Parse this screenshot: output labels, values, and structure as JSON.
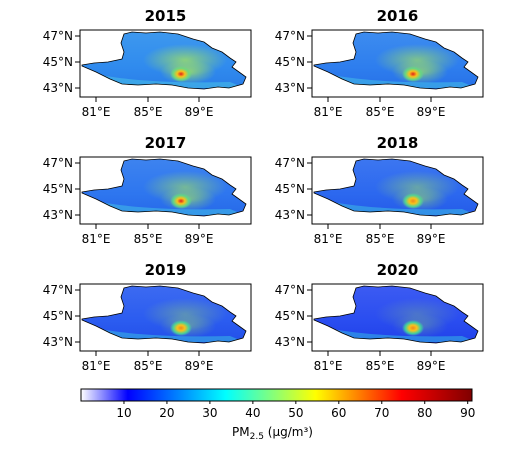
{
  "panels": [
    {
      "year": "2015",
      "level": 0.5
    },
    {
      "year": "2016",
      "level": 0.4
    },
    {
      "year": "2017",
      "level": 0.33
    },
    {
      "year": "2018",
      "level": 0.22
    },
    {
      "year": "2019",
      "level": 0.12
    },
    {
      "year": "2020",
      "level": 0.0
    }
  ],
  "lat_ticks": [
    "47°N",
    "45°N",
    "43°N"
  ],
  "lon_ticks": [
    "81°E",
    "85°E",
    "89°E"
  ],
  "colorbar": {
    "ticks": [
      "10",
      "20",
      "30",
      "40",
      "50",
      "60",
      "70",
      "80",
      "90"
    ],
    "label_main": "PM",
    "label_sub": "2.5",
    "label_units": " (μg/m³)",
    "colors": [
      "#ffffff",
      "#0000ff",
      "#00ffff",
      "#ffff00",
      "#ff0000",
      "#800000"
    ]
  }
}
